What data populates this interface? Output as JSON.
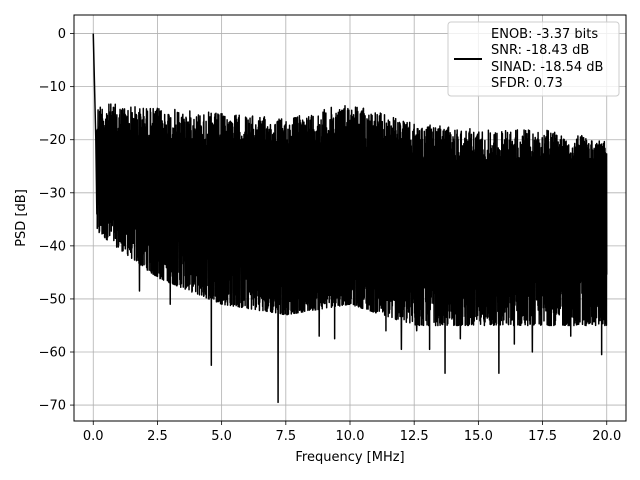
{
  "chart_data": {
    "type": "line",
    "title": "",
    "xlabel": "Frequency [MHz]",
    "ylabel": "PSD [dB]",
    "xlim": [
      -0.75,
      20.75
    ],
    "ylim": [
      -73,
      3.5
    ],
    "xticks": [
      0.0,
      2.5,
      5.0,
      7.5,
      10.0,
      12.5,
      15.0,
      17.5,
      20.0
    ],
    "xtick_labels": [
      "0.0",
      "2.5",
      "5.0",
      "7.5",
      "10.0",
      "12.5",
      "15.0",
      "17.5",
      "20.0"
    ],
    "yticks": [
      0,
      -10,
      -20,
      -30,
      -40,
      -50,
      -60,
      -70
    ],
    "ytick_labels": [
      "0",
      "−10",
      "−20",
      "−30",
      "−40",
      "−50",
      "−60",
      "−70"
    ],
    "grid": true,
    "legend_position": "top-right",
    "legend": {
      "line_color": "#000000",
      "entries": [
        "ENOB: -3.37 bits",
        "SNR: -18.43 dB",
        "SINAD: -18.54 dB",
        "SFDR: 0.73"
      ]
    },
    "series": [
      {
        "color": "#000000",
        "description": "dense noisy PSD, peak 0 dB at DC, upper envelope about -15 to -20 dB, mean about -28 dB, lower envelope about -40 to -50 dB",
        "peak": {
          "x": 0.0,
          "y": 0.0
        },
        "upper_envelope": [
          [
            0.3,
            -13
          ],
          [
            2.5,
            -14
          ],
          [
            5.0,
            -15
          ],
          [
            7.5,
            -16
          ],
          [
            10.0,
            -13
          ],
          [
            12.5,
            -17
          ],
          [
            15.0,
            -18
          ],
          [
            17.5,
            -18
          ],
          [
            20.0,
            -20
          ]
        ],
        "lower_envelope": [
          [
            0.3,
            -35
          ],
          [
            2.5,
            -43
          ],
          [
            5.0,
            -48
          ],
          [
            7.5,
            -50
          ],
          [
            10.0,
            -48
          ],
          [
            12.5,
            -52
          ],
          [
            15.0,
            -52
          ],
          [
            17.5,
            -52
          ],
          [
            20.0,
            -52
          ]
        ],
        "notable_dips": [
          [
            1.8,
            -48.5
          ],
          [
            3.0,
            -51
          ],
          [
            4.6,
            -62.5
          ],
          [
            5.6,
            -51
          ],
          [
            6.7,
            -51
          ],
          [
            7.2,
            -69.5
          ],
          [
            8.8,
            -57
          ],
          [
            9.4,
            -57.5
          ],
          [
            11.4,
            -56
          ],
          [
            12.0,
            -59.5
          ],
          [
            12.6,
            -56
          ],
          [
            13.1,
            -59.5
          ],
          [
            13.7,
            -64
          ],
          [
            14.3,
            -57.5
          ],
          [
            15.8,
            -64
          ],
          [
            16.4,
            -58.5
          ],
          [
            17.1,
            -60
          ],
          [
            18.6,
            -57
          ],
          [
            19.8,
            -60.5
          ]
        ]
      }
    ]
  }
}
